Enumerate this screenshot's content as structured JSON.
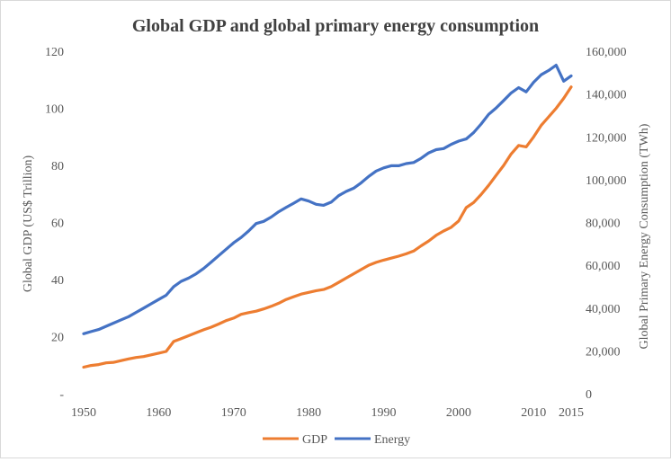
{
  "chart_data": {
    "type": "line",
    "title": "Global GDP and global primary energy consumption",
    "ylabel": "Global GDP (US$ Trillion)",
    "y2label": "Global Primary Energy Consumption (TWh)",
    "xlim": [
      1950,
      2015
    ],
    "ylim": [
      0,
      120
    ],
    "y2lim": [
      0,
      160000
    ],
    "x_ticks": [
      1950,
      1960,
      1970,
      1980,
      1990,
      2000,
      2010,
      2015
    ],
    "y_ticks": [
      "-",
      "20",
      "40",
      "60",
      "80",
      "100",
      "120"
    ],
    "y2_ticks": [
      "0",
      "20,000",
      "40,000",
      "60,000",
      "80,000",
      "100,000",
      "120,000",
      "140,000",
      "160,000"
    ],
    "legend": "bottom",
    "grid": false,
    "series": [
      {
        "name": "GDP",
        "axis": "left",
        "color": "#ED7D31",
        "points": [
          [
            1950,
            9.3
          ],
          [
            1951,
            9.9
          ],
          [
            1952,
            10.2
          ],
          [
            1953,
            10.8
          ],
          [
            1954,
            11.0
          ],
          [
            1955,
            11.6
          ],
          [
            1956,
            12.2
          ],
          [
            1957,
            12.7
          ],
          [
            1958,
            13.0
          ],
          [
            1959,
            13.6
          ],
          [
            1960,
            14.2
          ],
          [
            1961,
            14.8
          ],
          [
            1962,
            18.3
          ],
          [
            1963,
            19.3
          ],
          [
            1964,
            20.3
          ],
          [
            1965,
            21.4
          ],
          [
            1966,
            22.4
          ],
          [
            1967,
            23.3
          ],
          [
            1968,
            24.4
          ],
          [
            1969,
            25.6
          ],
          [
            1970,
            26.5
          ],
          [
            1971,
            27.8
          ],
          [
            1972,
            28.4
          ],
          [
            1973,
            28.9
          ],
          [
            1974,
            29.7
          ],
          [
            1975,
            30.6
          ],
          [
            1976,
            31.7
          ],
          [
            1977,
            33.0
          ],
          [
            1978,
            34.0
          ],
          [
            1979,
            34.9
          ],
          [
            1980,
            35.5
          ],
          [
            1981,
            36.1
          ],
          [
            1982,
            36.5
          ],
          [
            1983,
            37.5
          ],
          [
            1984,
            39.0
          ],
          [
            1985,
            40.5
          ],
          [
            1986,
            42.0
          ],
          [
            1987,
            43.5
          ],
          [
            1988,
            45.0
          ],
          [
            1989,
            46.0
          ],
          [
            1990,
            46.8
          ],
          [
            1991,
            47.5
          ],
          [
            1992,
            48.2
          ],
          [
            1993,
            49.0
          ],
          [
            1994,
            50.0
          ],
          [
            1995,
            51.8
          ],
          [
            1996,
            53.5
          ],
          [
            1997,
            55.5
          ],
          [
            1998,
            57.0
          ],
          [
            1999,
            58.3
          ],
          [
            2000,
            60.5
          ],
          [
            2001,
            65.2
          ],
          [
            2002,
            67.0
          ],
          [
            2003,
            69.8
          ],
          [
            2004,
            73.0
          ],
          [
            2005,
            76.5
          ],
          [
            2006,
            80.0
          ],
          [
            2007,
            84.0
          ],
          [
            2008,
            87.0
          ],
          [
            2009,
            86.5
          ],
          [
            2010,
            90.0
          ],
          [
            2011,
            94.0
          ],
          [
            2012,
            97.0
          ],
          [
            2013,
            100.0
          ],
          [
            2014,
            103.5
          ],
          [
            2015,
            107.5
          ]
        ]
      },
      {
        "name": "Energy",
        "axis": "right",
        "color": "#4472C4",
        "points": [
          [
            1950,
            28000
          ],
          [
            1951,
            29000
          ],
          [
            1952,
            30000
          ],
          [
            1953,
            31500
          ],
          [
            1954,
            33000
          ],
          [
            1955,
            34500
          ],
          [
            1956,
            36000
          ],
          [
            1957,
            38000
          ],
          [
            1958,
            40000
          ],
          [
            1959,
            42000
          ],
          [
            1960,
            44000
          ],
          [
            1961,
            46000
          ],
          [
            1962,
            50000
          ],
          [
            1963,
            52500
          ],
          [
            1964,
            54000
          ],
          [
            1965,
            56000
          ],
          [
            1966,
            58500
          ],
          [
            1967,
            61500
          ],
          [
            1968,
            64500
          ],
          [
            1969,
            67500
          ],
          [
            1970,
            70500
          ],
          [
            1971,
            73000
          ],
          [
            1972,
            76000
          ],
          [
            1973,
            79500
          ],
          [
            1974,
            80500
          ],
          [
            1975,
            82500
          ],
          [
            1976,
            85000
          ],
          [
            1977,
            87000
          ],
          [
            1978,
            89000
          ],
          [
            1979,
            91000
          ],
          [
            1980,
            90000
          ],
          [
            1981,
            88500
          ],
          [
            1982,
            88000
          ],
          [
            1983,
            89500
          ],
          [
            1984,
            92500
          ],
          [
            1985,
            94500
          ],
          [
            1986,
            96000
          ],
          [
            1987,
            98500
          ],
          [
            1988,
            101500
          ],
          [
            1989,
            104000
          ],
          [
            1990,
            105500
          ],
          [
            1991,
            106500
          ],
          [
            1992,
            106500
          ],
          [
            1993,
            107500
          ],
          [
            1994,
            108000
          ],
          [
            1995,
            110000
          ],
          [
            1996,
            112500
          ],
          [
            1997,
            114000
          ],
          [
            1998,
            114500
          ],
          [
            1999,
            116500
          ],
          [
            2000,
            118000
          ],
          [
            2001,
            119000
          ],
          [
            2002,
            122000
          ],
          [
            2003,
            126000
          ],
          [
            2004,
            130500
          ],
          [
            2005,
            133500
          ],
          [
            2006,
            137000
          ],
          [
            2007,
            140500
          ],
          [
            2008,
            143000
          ],
          [
            2009,
            141000
          ],
          [
            2010,
            145500
          ],
          [
            2011,
            149000
          ],
          [
            2012,
            151000
          ],
          [
            2013,
            153500
          ],
          [
            2014,
            146000
          ],
          [
            2015,
            148500
          ]
        ]
      }
    ]
  }
}
